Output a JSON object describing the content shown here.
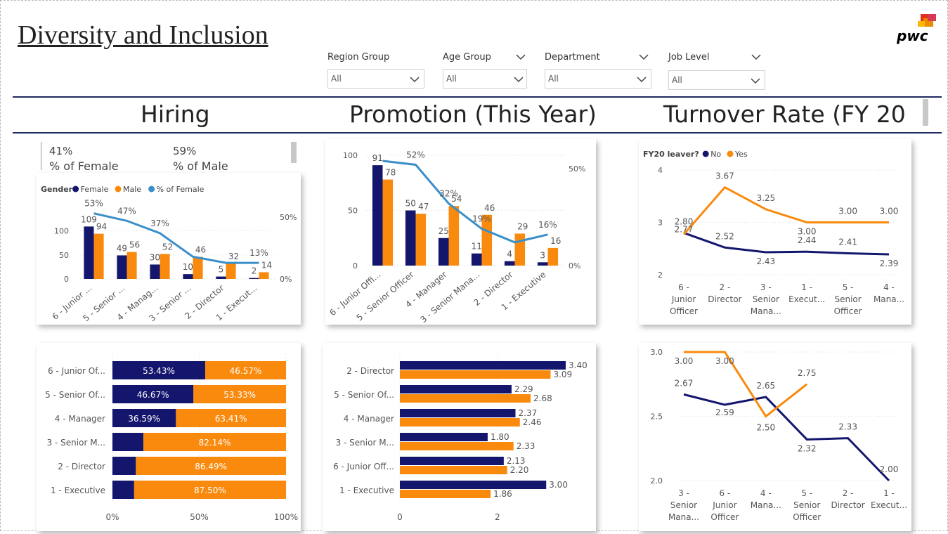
{
  "header": {
    "title": "Diversity and Inclusion",
    "logo_text": "pwc"
  },
  "slicers": [
    {
      "label": "Region Group",
      "value": "All"
    },
    {
      "label": "Age Group",
      "value": "All"
    },
    {
      "label": "Department",
      "value": "All"
    },
    {
      "label": "Job Level",
      "value": "All"
    }
  ],
  "sections": {
    "hiring": "Hiring",
    "promotion": "Promotion (This Year)",
    "turnover": "Turnover Rate (FY 20"
  },
  "kpis": {
    "female_pct": "41%",
    "female_label": "% of Female",
    "male_pct": "59%",
    "male_label": "% of Male"
  },
  "colors": {
    "navy": "#14166e",
    "orange": "#f98a0d",
    "line_blue": "#3a8fc8",
    "rule": "#1f2a5c"
  },
  "chart_data": [
    {
      "id": "hiring-gender",
      "type": "bar",
      "legend_title": "Gender",
      "legend": [
        "Female",
        "Male",
        "% of Female"
      ],
      "categories": [
        "6 - Junior ...",
        "5 - Senior ...",
        "4 - Manag...",
        "3 - Senior ...",
        "2 - Director",
        "1 - Execut..."
      ],
      "series": [
        {
          "name": "Female",
          "values": [
            109,
            49,
            30,
            10,
            5,
            2
          ]
        },
        {
          "name": "Male",
          "values": [
            94,
            56,
            52,
            46,
            32,
            14
          ]
        },
        {
          "name": "% of Female",
          "values": [
            53,
            47,
            37,
            18,
            13,
            13
          ],
          "labels": [
            "53%",
            "47%",
            "37%",
            "",
            "",
            "13%"
          ]
        }
      ],
      "ylim": [
        0,
        130
      ],
      "yticks": [
        0,
        50,
        100
      ],
      "y2ticks": [
        "0%",
        "50%"
      ]
    },
    {
      "id": "promotion-gender",
      "type": "bar",
      "categories": [
        "6 - Junior Offi...",
        "5 - Senior Officer",
        "4 - Manager",
        "3 - Senior Mana...",
        "2 - Director",
        "1 - Executive"
      ],
      "series": [
        {
          "name": "Female",
          "values": [
            91,
            50,
            25,
            11,
            4,
            3
          ]
        },
        {
          "name": "Male",
          "values": [
            78,
            47,
            54,
            46,
            29,
            16
          ]
        },
        {
          "name": "% of Female",
          "values": [
            54,
            52,
            32,
            19,
            12,
            16
          ],
          "labels": [
            "",
            "52%",
            "32%",
            "19%",
            "",
            "16%"
          ]
        }
      ],
      "ylim": [
        0,
        100
      ],
      "yticks": [
        0,
        50,
        100
      ],
      "y2ticks": [
        "0%",
        "50%"
      ]
    },
    {
      "id": "turnover-level",
      "type": "line",
      "legend_title": "FY20 leaver?",
      "legend": [
        "No",
        "Yes"
      ],
      "categories": [
        "6 - Junior Officer",
        "2 - Director",
        "3 - Senior Mana...",
        "1 - Execut...",
        "5 - Senior Officer",
        "4 - Mana..."
      ],
      "series": [
        {
          "name": "No",
          "values": [
            2.8,
            2.52,
            2.43,
            2.44,
            2.41,
            2.39
          ],
          "labels": [
            "2.80",
            "2.52",
            "2.43",
            "2.44",
            "2.41",
            "2.39"
          ]
        },
        {
          "name": "Yes",
          "values": [
            2.77,
            3.67,
            3.25,
            3.0,
            3.0,
            3.0
          ],
          "labels": [
            "2.77",
            "3.67",
            "3.25",
            "3.00",
            "3.00",
            "3.00"
          ]
        }
      ],
      "ylim": [
        2,
        4
      ],
      "yticks": [
        2,
        3,
        4
      ]
    },
    {
      "id": "hiring-share",
      "type": "bar",
      "orientation": "horizontal-stacked-100",
      "categories": [
        "6 - Junior Of...",
        "5 - Senior Of...",
        "4 - Manager",
        "3 - Senior M...",
        "2 - Director",
        "1 - Executive"
      ],
      "series": [
        {
          "name": "Female",
          "values": [
            53.43,
            46.67,
            36.59,
            17.86,
            13.51,
            12.5
          ],
          "labels": [
            "53.43%",
            "46.67%",
            "36.59%",
            "",
            "",
            ""
          ]
        },
        {
          "name": "Male",
          "values": [
            46.57,
            53.33,
            63.41,
            82.14,
            86.49,
            87.5
          ],
          "labels": [
            "46.57%",
            "53.33%",
            "63.41%",
            "82.14%",
            "86.49%",
            "87.50%"
          ]
        }
      ],
      "xticks": [
        "0%",
        "50%",
        "100%"
      ]
    },
    {
      "id": "promotion-years",
      "type": "bar",
      "orientation": "horizontal",
      "categories": [
        "2 - Director",
        "5 - Senior Of...",
        "4 - Manager",
        "3 - Senior M...",
        "6 - Junior Off...",
        "1 - Executive"
      ],
      "series": [
        {
          "name": "Female",
          "values": [
            3.4,
            2.29,
            2.37,
            1.8,
            2.13,
            3.0
          ],
          "labels": [
            "3.40",
            "2.29",
            "2.37",
            "1.80",
            "2.13",
            "3.00"
          ]
        },
        {
          "name": "Male",
          "values": [
            3.09,
            2.68,
            2.46,
            2.33,
            2.2,
            1.86
          ],
          "labels": [
            "3.09",
            "2.68",
            "2.46",
            "2.33",
            "2.20",
            "1.86"
          ]
        }
      ],
      "xlim": [
        0,
        3.6
      ],
      "xticks": [
        "0",
        "2"
      ]
    },
    {
      "id": "turnover-age",
      "type": "line",
      "categories": [
        "3 - Senior Mana...",
        "6 - Junior Officer",
        "4 - Mana...",
        "5 - Senior Officer",
        "2 - Director",
        "1 - Execut..."
      ],
      "series": [
        {
          "name": "No",
          "values": [
            2.67,
            2.59,
            2.65,
            2.32,
            2.33,
            2.0
          ],
          "labels": [
            "2.67",
            "2.59",
            "2.65",
            "2.32",
            "2.33",
            "2.00"
          ]
        },
        {
          "name": "Yes",
          "values": [
            3.0,
            3.0,
            2.5,
            2.75,
            null,
            null
          ],
          "labels": [
            "3.00",
            "3.00",
            "2.50",
            "2.75",
            "",
            ""
          ]
        }
      ],
      "ylim": [
        2.0,
        3.0
      ],
      "yticks": [
        "2.0",
        "2.5",
        "3.0"
      ]
    }
  ]
}
